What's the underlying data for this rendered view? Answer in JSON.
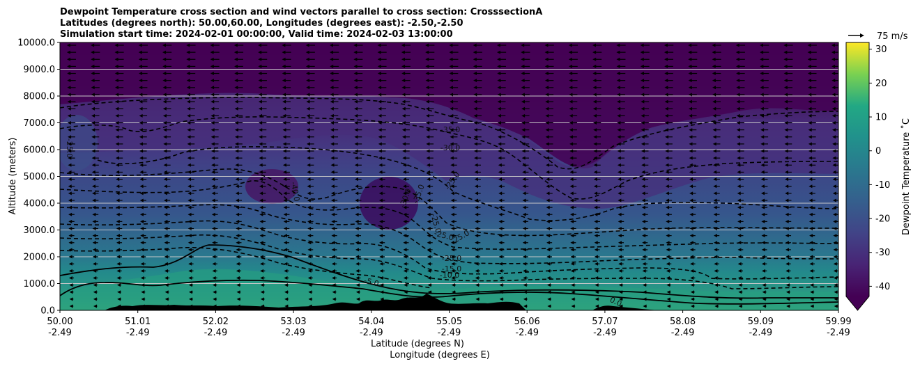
{
  "chart_data": {
    "type": "contour",
    "title_lines": [
      "Dewpoint Temperature cross section and wind vectors parallel to cross section: CrosssectionA",
      "Latitudes (degrees north): 50.00,60.00, Longitudes (degrees east): -2.50,-2.50",
      "Simulation start time: 2024-02-01 00:00:00, Valid time: 2024-02-03 13:00:00"
    ],
    "ylabel": "Altitude (meters)",
    "xlabel_lines": [
      "Latitude (degrees N)",
      "Longitude (degrees E)"
    ],
    "ylim": [
      0,
      10000
    ],
    "y_ticks": [
      "0.0",
      "1000.0",
      "2000.0",
      "3000.0",
      "4000.0",
      "5000.0",
      "6000.0",
      "7000.0",
      "8000.0",
      "9000.0",
      "10000.0"
    ],
    "x_ticks": [
      {
        "lat": "50.00",
        "lon": "-2.49"
      },
      {
        "lat": "51.01",
        "lon": "-2.49"
      },
      {
        "lat": "52.02",
        "lon": "-2.49"
      },
      {
        "lat": "53.03",
        "lon": "-2.49"
      },
      {
        "lat": "54.04",
        "lon": "-2.49"
      },
      {
        "lat": "55.05",
        "lon": "-2.49"
      },
      {
        "lat": "56.06",
        "lon": "-2.49"
      },
      {
        "lat": "57.07",
        "lon": "-2.49"
      },
      {
        "lat": "58.08",
        "lon": "-2.49"
      },
      {
        "lat": "59.09",
        "lon": "-2.49"
      },
      {
        "lat": "59.99",
        "lon": "-2.49"
      }
    ],
    "grid": "horizontal",
    "colorbar": {
      "label": "Dewpoint Temperature $^\\circ$C",
      "label_display": "Dewpoint Temperature ˚C",
      "range": [
        -43,
        32
      ],
      "ticks": [
        "-40",
        "-30",
        "-20",
        "-10",
        "0",
        "10",
        "20",
        "30"
      ],
      "tick_values": [
        -40,
        -30,
        -20,
        -10,
        0,
        10,
        20,
        30
      ],
      "colormap": "viridis",
      "extend": "min"
    },
    "quiver_key": "75 m/s",
    "contour_labels": [
      "-35.0",
      "-30.0",
      "-25.0",
      "-40.0",
      "-30.0",
      "-35.0",
      "-25.0",
      "-25.0",
      "-25.0",
      "-25.0",
      "-15.0",
      "-10.0",
      "-5.0",
      "0.0",
      "-25.0"
    ],
    "colors": {
      "viridis_low": "#440154",
      "viridis_mid": "#21918c",
      "viridis_high": "#fde725",
      "terrain": "#000000",
      "contour": "#000000"
    }
  }
}
